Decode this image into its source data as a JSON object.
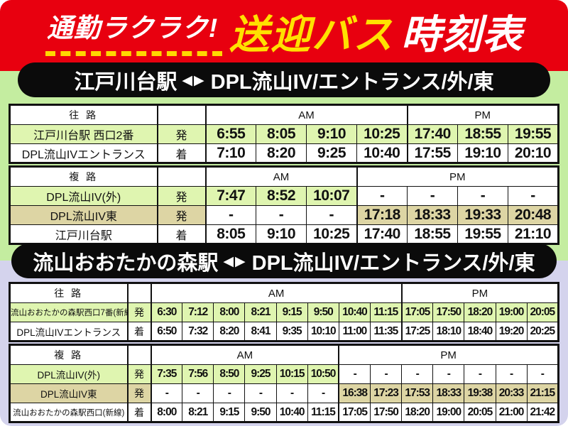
{
  "header": {
    "catch": "通勤ラクラク!",
    "title_yellow": "送迎バス",
    "title_white": "時刻表"
  },
  "colors": {
    "header_red": "#e8000f",
    "title_yellow": "#ffe100",
    "dash_underline_yellow": "#ffd800",
    "banner_black": "#0b0b0b",
    "section1_bg_green": "#c4eda0",
    "section2_bg_lavender": "#d4d3ed",
    "row_green": "#dff5b0",
    "row_tan": "#ddd5a4",
    "row_white": "#ffffff"
  },
  "sections": [
    {
      "banner": {
        "station": "江戸川台駅",
        "arrows": "◀▶",
        "destination": "DPL流山IV/エントランス/外/東"
      },
      "tables": [
        {
          "direction": "往 路",
          "groups": [
            {
              "label": "AM",
              "span": 4
            },
            {
              "label": "PM",
              "span": 3
            }
          ],
          "rows": [
            {
              "label": "江戸川台駅 西口2番",
              "mark": "発",
              "color": "green",
              "times": [
                "6:55",
                "8:05",
                "9:10",
                "10:25",
                "17:40",
                "18:55",
                "19:55"
              ]
            },
            {
              "label": "DPL流山IVエントランス",
              "mark": "着",
              "color": "white",
              "times": [
                "7:10",
                "8:20",
                "9:25",
                "10:40",
                "17:55",
                "19:10",
                "20:10"
              ]
            }
          ]
        },
        {
          "direction": "複 路",
          "groups": [
            {
              "label": "AM",
              "span": 3
            },
            {
              "label": "PM",
              "span": 4
            }
          ],
          "rows": [
            {
              "label": "DPL流山IV(外)",
              "mark": "発",
              "color": "green",
              "times": [
                "7:47",
                "8:52",
                "10:07",
                "-",
                "-",
                "-",
                "-"
              ]
            },
            {
              "label": "DPL流山IV東",
              "mark": "発",
              "color": "tan",
              "times": [
                "-",
                "-",
                "-",
                "17:18",
                "18:33",
                "19:33",
                "20:48"
              ]
            },
            {
              "label": "江戸川台駅",
              "mark": "着",
              "color": "white",
              "times": [
                "8:05",
                "9:10",
                "10:25",
                "17:40",
                "18:55",
                "19:55",
                "21:10"
              ]
            }
          ]
        }
      ]
    },
    {
      "banner": {
        "station": "流山おおたかの森駅",
        "arrows": "◀▶",
        "destination": "DPL流山IV/エントランス/外/東"
      },
      "tables": [
        {
          "direction": "往 路",
          "groups": [
            {
              "label": "AM",
              "span": 8
            },
            {
              "label": "PM",
              "span": 5
            }
          ],
          "rows": [
            {
              "label": "流山おおたかの森駅西口7番(新線)",
              "mark": "発",
              "color": "green",
              "times": [
                "6:30",
                "7:12",
                "8:00",
                "8:21",
                "9:15",
                "9:50",
                "10:40",
                "11:15",
                "17:05",
                "17:50",
                "18:20",
                "19:00",
                "20:05"
              ]
            },
            {
              "label": "DPL流山IVエントランス",
              "mark": "着",
              "color": "white",
              "times": [
                "6:50",
                "7:32",
                "8:20",
                "8:41",
                "9:35",
                "10:10",
                "11:00",
                "11:35",
                "17:25",
                "18:10",
                "18:40",
                "19:20",
                "20:25"
              ]
            }
          ]
        },
        {
          "direction": "複 路",
          "groups": [
            {
              "label": "AM",
              "span": 6
            },
            {
              "label": "PM",
              "span": 7
            }
          ],
          "rows": [
            {
              "label": "DPL流山IV(外)",
              "mark": "発",
              "color": "green",
              "times": [
                "7:35",
                "7:56",
                "8:50",
                "9:25",
                "10:15",
                "10:50",
                "-",
                "-",
                "-",
                "-",
                "-",
                "-",
                "-"
              ]
            },
            {
              "label": "DPL流山IV東",
              "mark": "発",
              "color": "tan",
              "times": [
                "-",
                "-",
                "-",
                "-",
                "-",
                "-",
                "16:38",
                "17:23",
                "17:53",
                "18:33",
                "19:38",
                "20:33",
                "21:15"
              ]
            },
            {
              "label": "流山おおたかの森駅西口(新線)",
              "mark": "着",
              "color": "white",
              "times": [
                "8:00",
                "8:21",
                "9:15",
                "9:50",
                "10:40",
                "11:15",
                "17:05",
                "17:50",
                "18:20",
                "19:00",
                "20:05",
                "21:00",
                "21:42"
              ]
            }
          ]
        }
      ]
    }
  ]
}
